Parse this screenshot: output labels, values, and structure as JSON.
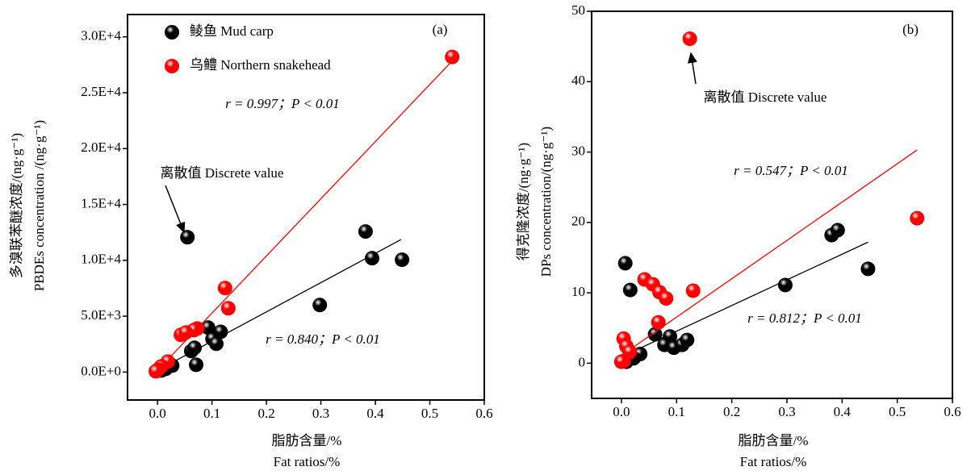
{
  "chart_data": [
    {
      "type": "scatter",
      "xlabel": [
        "脂肪含量/%",
        "Fat ratios/%"
      ],
      "ylabel": [
        "多溴联苯醚浓度/(ng·g⁻¹)",
        "PBDEs concentration /(ng·g⁻¹)"
      ],
      "annotations": [
        "(a)",
        "r = 0.997；P < 0.01",
        "r = 0.840；P < 0.01",
        "离散值 Discrete value"
      ],
      "xlim": [
        -0.055,
        0.6
      ],
      "ylim": [
        -2500,
        32000
      ],
      "xticks": [
        {
          "value": 0,
          "label": "0.0"
        },
        {
          "value": 0.1,
          "label": "0.1"
        },
        {
          "value": 0.2,
          "label": "0.2"
        },
        {
          "value": 0.3,
          "label": "0.3"
        },
        {
          "value": 0.4,
          "label": "0.4"
        },
        {
          "value": 0.5,
          "label": "0.5"
        },
        {
          "value": 0.6,
          "label": "0.6"
        }
      ],
      "yticks": [
        {
          "value": 0,
          "label": "0.0E+0"
        },
        {
          "value": 5000,
          "label": "5.0E+3"
        },
        {
          "value": 10000,
          "label": "1.0E+4"
        },
        {
          "value": 15000,
          "label": "1.5E+4"
        },
        {
          "value": 20000,
          "label": "2.0E+4"
        },
        {
          "value": 25000,
          "label": "2.5E+4"
        },
        {
          "value": 30000,
          "label": "3.0E+4"
        }
      ],
      "series": [
        {
          "name": "鲮鱼 Mud carp",
          "color": "#000000",
          "x": [
            0.055,
            0.382,
            0.394,
            0.449,
            0.298,
            0.116,
            0.093,
            0.101,
            0.108,
            0.062,
            0.068,
            0.071,
            0.027,
            0.015,
            0.007,
            0.001
          ],
          "values": [
            12070,
            12580,
            10190,
            10050,
            6000,
            3600,
            3980,
            2960,
            2530,
            1880,
            2170,
            650,
            580,
            290,
            140,
            140
          ],
          "fit": {
            "x": [
              0,
              0.447
            ],
            "y": [
              145,
              11860
            ]
          }
        },
        {
          "name": "乌鳢 Northern snakehead",
          "color": "#ff0000",
          "x": [
            0.541,
            0.124,
            0.13,
            0.073,
            0.067,
            0.043,
            0.052,
            0.019,
            0.007,
            0.001,
            -0.003
          ],
          "values": [
            28200,
            7520,
            5710,
            3900,
            3760,
            3330,
            3540,
            940,
            510,
            220,
            70
          ],
          "fit": {
            "x": [
              -0.003,
              0.548
            ],
            "y": [
              0,
              28200
            ]
          }
        }
      ]
    },
    {
      "type": "scatter",
      "xlabel": [
        "脂肪含量/%",
        "Fat ratios/%"
      ],
      "ylabel": [
        "得克隆浓度/(ng·g⁻¹)",
        "DPs concentration/(ng·g⁻¹)"
      ],
      "annotations": [
        "(b)",
        "r = 0.547；P < 0.01",
        "r = 0.812；P < 0.01",
        "离散值 Discrete value"
      ],
      "xlim": [
        -0.054,
        0.6
      ],
      "ylim": [
        -5,
        50
      ],
      "xticks": [
        {
          "value": 0,
          "label": "0.0"
        },
        {
          "value": 0.1,
          "label": "0.1"
        },
        {
          "value": 0.2,
          "label": "0.2"
        },
        {
          "value": 0.3,
          "label": "0.3"
        },
        {
          "value": 0.4,
          "label": "0.4"
        },
        {
          "value": 0.5,
          "label": "0.5"
        },
        {
          "value": 0.6,
          "label": "0.6"
        }
      ],
      "yticks": [
        0,
        10,
        20,
        30,
        40,
        50
      ],
      "series": [
        {
          "color": "#000000",
          "x": [
            0.007,
            0.016,
            0.297,
            0.381,
            0.392,
            0.447,
            0.061,
            0.088,
            0.078,
            0.095,
            0.11,
            0.119,
            0.034,
            0.022,
            0.009
          ],
          "values": [
            14.2,
            10.4,
            11.1,
            18.2,
            18.9,
            13.4,
            4.1,
            3.8,
            2.6,
            2.2,
            2.6,
            3.3,
            1.3,
            0.7,
            0.2
          ],
          "fit": {
            "x": [
              0,
              0.447
            ],
            "y": [
              0.9,
              17.2
            ]
          }
        },
        {
          "color": "#ff0000",
          "x": [
            0.124,
            0.536,
            0.13,
            0.042,
            0.057,
            0.069,
            0.081,
            0.067,
            0.004,
            0.009,
            0.015,
            0.004,
            0
          ],
          "values": [
            46.1,
            20.6,
            10.3,
            11.9,
            11.2,
            10.1,
            9.2,
            5.8,
            3.5,
            2.4,
            1.6,
            0.3,
            0.2
          ],
          "fit": {
            "x": [
              0,
              0.536
            ],
            "y": [
              1.1,
              30.3
            ]
          }
        }
      ]
    }
  ]
}
